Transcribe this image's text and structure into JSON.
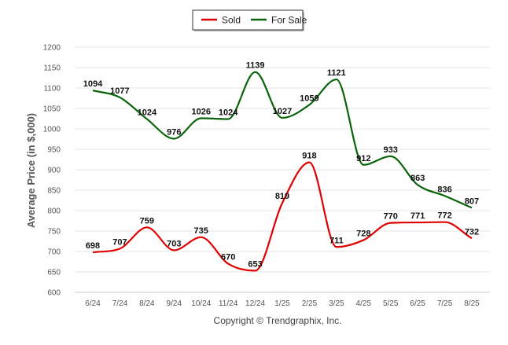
{
  "chart_data": {
    "type": "line",
    "title": "",
    "xlabel": "",
    "ylabel": "Average Price (in $,000)",
    "ylim": [
      600,
      1200
    ],
    "yticks": [
      600,
      650,
      700,
      750,
      800,
      850,
      900,
      950,
      1000,
      1050,
      1100,
      1150,
      1200
    ],
    "grid": true,
    "legend_position": "top-center",
    "categories": [
      "6/24",
      "7/24",
      "8/24",
      "9/24",
      "10/24",
      "11/24",
      "12/24",
      "1/25",
      "2/25",
      "3/25",
      "4/25",
      "5/25",
      "6/25",
      "7/25",
      "8/25"
    ],
    "series": [
      {
        "name": "Sold",
        "color": "#e00000",
        "values": [
          698,
          707,
          759,
          703,
          735,
          670,
          653,
          819,
          918,
          711,
          728,
          770,
          771,
          772,
          732
        ]
      },
      {
        "name": "For Sale",
        "color": "#0a640a",
        "values": [
          1094,
          1077,
          1024,
          976,
          1026,
          1024,
          1139,
          1027,
          1059,
          1121,
          912,
          933,
          863,
          836,
          807
        ]
      }
    ],
    "footer": "Copyright © Trendgraphix, Inc."
  }
}
